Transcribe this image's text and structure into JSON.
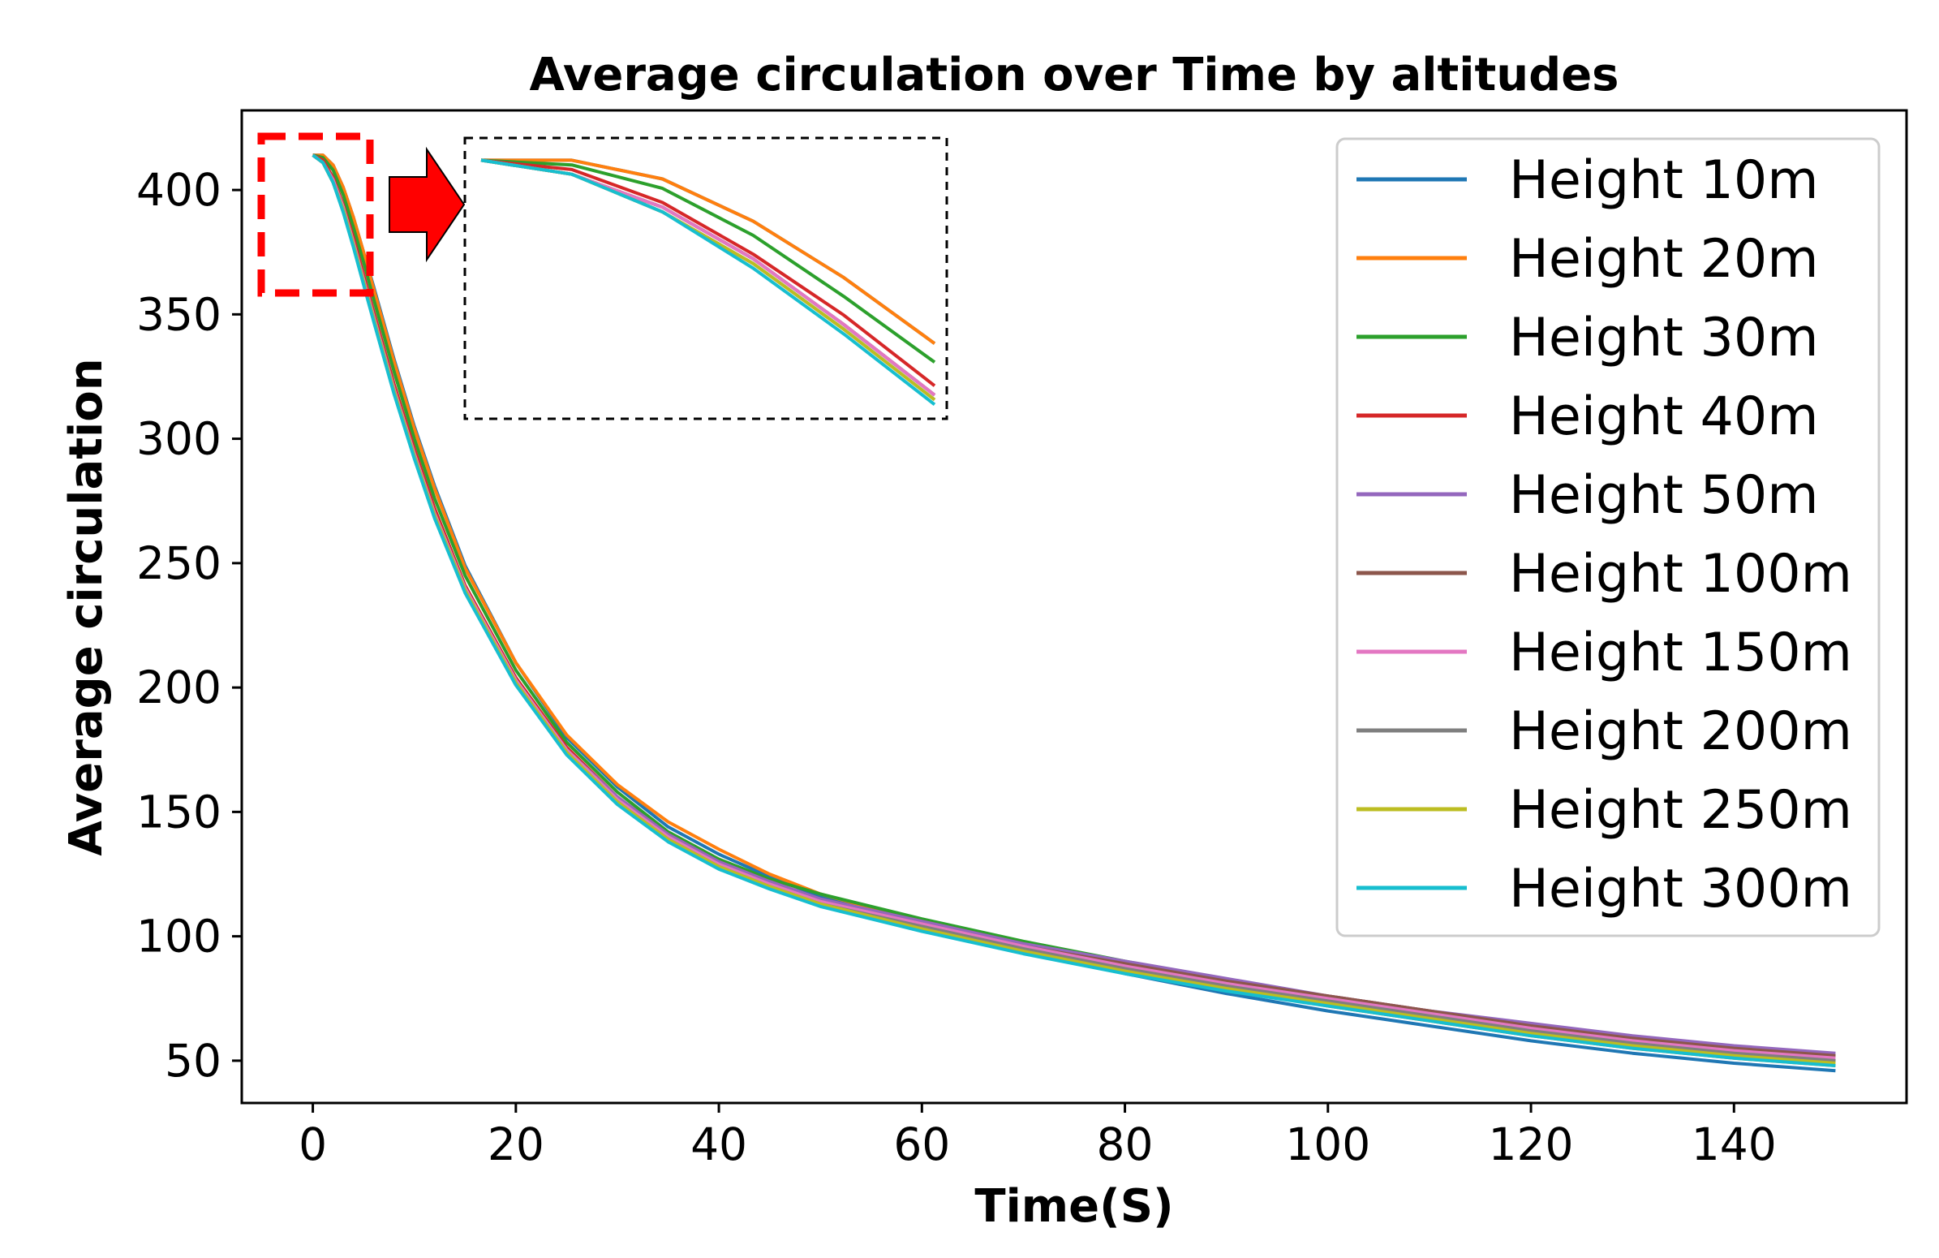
{
  "chart_data": {
    "type": "line",
    "title": "Average circulation over Time by altitudes",
    "xlabel": "Time(S)",
    "ylabel": "Average circulation",
    "xlim": [
      -7,
      157
    ],
    "ylim": [
      33,
      432
    ],
    "xticks": [
      0,
      20,
      40,
      60,
      80,
      100,
      120,
      140
    ],
    "yticks": [
      50,
      100,
      150,
      200,
      250,
      300,
      350,
      400
    ],
    "legend_position": "top-right",
    "inset": {
      "xlim": [
        0,
        5
      ],
      "ylim": [
        360,
        417
      ],
      "note": "zoomed view of the early decay (0-5 s)"
    },
    "x": [
      0,
      1,
      2,
      3,
      4,
      5,
      6,
      8,
      10,
      12,
      15,
      20,
      25,
      30,
      35,
      40,
      45,
      50,
      60,
      70,
      80,
      90,
      100,
      110,
      120,
      130,
      140,
      150
    ],
    "series": [
      {
        "name": "Height 10m",
        "color": "#1f77b4",
        "values": [
          414,
          414,
          410,
          401,
          389,
          375,
          361,
          332,
          305,
          281,
          249,
          210,
          180,
          160,
          144,
          133,
          124,
          116,
          105,
          94,
          85,
          77,
          70,
          64,
          58,
          53,
          49,
          46
        ]
      },
      {
        "name": "Height 20m",
        "color": "#ff7f0e",
        "values": [
          414,
          414,
          410,
          401,
          389,
          375,
          360,
          331,
          304,
          280,
          248,
          210,
          181,
          161,
          146,
          135,
          125,
          117,
          106,
          96,
          87,
          79,
          72,
          66,
          60,
          55,
          51,
          48
        ]
      },
      {
        "name": "Height 30m",
        "color": "#2ca02c",
        "values": [
          414,
          413,
          408,
          398,
          385,
          371,
          356,
          327,
          300,
          276,
          245,
          207,
          178,
          158,
          142,
          131,
          123,
          117,
          107,
          98,
          90,
          82,
          75,
          69,
          63,
          58,
          54,
          50
        ]
      },
      {
        "name": "Height 40m",
        "color": "#d62728",
        "values": [
          414,
          412,
          405,
          394,
          381,
          366,
          351,
          322,
          296,
          272,
          241,
          204,
          176,
          156,
          141,
          130,
          122,
          115,
          106,
          97,
          89,
          82,
          76,
          70,
          64,
          59,
          55,
          52
        ]
      },
      {
        "name": "Height 50m",
        "color": "#9467bd",
        "values": [
          414,
          411,
          404,
          393,
          379,
          364,
          349,
          320,
          294,
          270,
          240,
          203,
          175,
          156,
          141,
          130,
          122,
          115,
          106,
          97,
          90,
          83,
          76,
          70,
          65,
          60,
          56,
          53
        ]
      },
      {
        "name": "Height 100m",
        "color": "#8c564b",
        "values": [
          414,
          411,
          404,
          393,
          379,
          364,
          349,
          320,
          294,
          270,
          240,
          203,
          175,
          155,
          140,
          129,
          121,
          114,
          105,
          96,
          89,
          82,
          76,
          70,
          64,
          59,
          55,
          52
        ]
      },
      {
        "name": "Height 150m",
        "color": "#e377c2",
        "values": [
          414,
          411,
          404,
          393,
          379,
          364,
          349,
          320,
          294,
          270,
          240,
          203,
          175,
          155,
          140,
          129,
          121,
          114,
          105,
          96,
          88,
          81,
          75,
          69,
          63,
          58,
          54,
          51
        ]
      },
      {
        "name": "Height 200m",
        "color": "#7f7f7f",
        "values": [
          414,
          411,
          403,
          392,
          378,
          363,
          348,
          319,
          293,
          269,
          239,
          202,
          174,
          154,
          139,
          128,
          120,
          113,
          104,
          95,
          87,
          80,
          74,
          68,
          62,
          57,
          53,
          50
        ]
      },
      {
        "name": "Height 250m",
        "color": "#bcbd22",
        "values": [
          414,
          411,
          403,
          392,
          378,
          363,
          348,
          319,
          293,
          269,
          239,
          202,
          174,
          154,
          139,
          128,
          120,
          113,
          103,
          94,
          86,
          79,
          73,
          67,
          61,
          56,
          52,
          49
        ]
      },
      {
        "name": "Height 300m",
        "color": "#17becf",
        "values": [
          414,
          411,
          403,
          391,
          377,
          362,
          347,
          318,
          292,
          268,
          238,
          201,
          173,
          153,
          138,
          127,
          119,
          112,
          102,
          93,
          85,
          78,
          72,
          66,
          60,
          55,
          51,
          48
        ]
      }
    ]
  }
}
